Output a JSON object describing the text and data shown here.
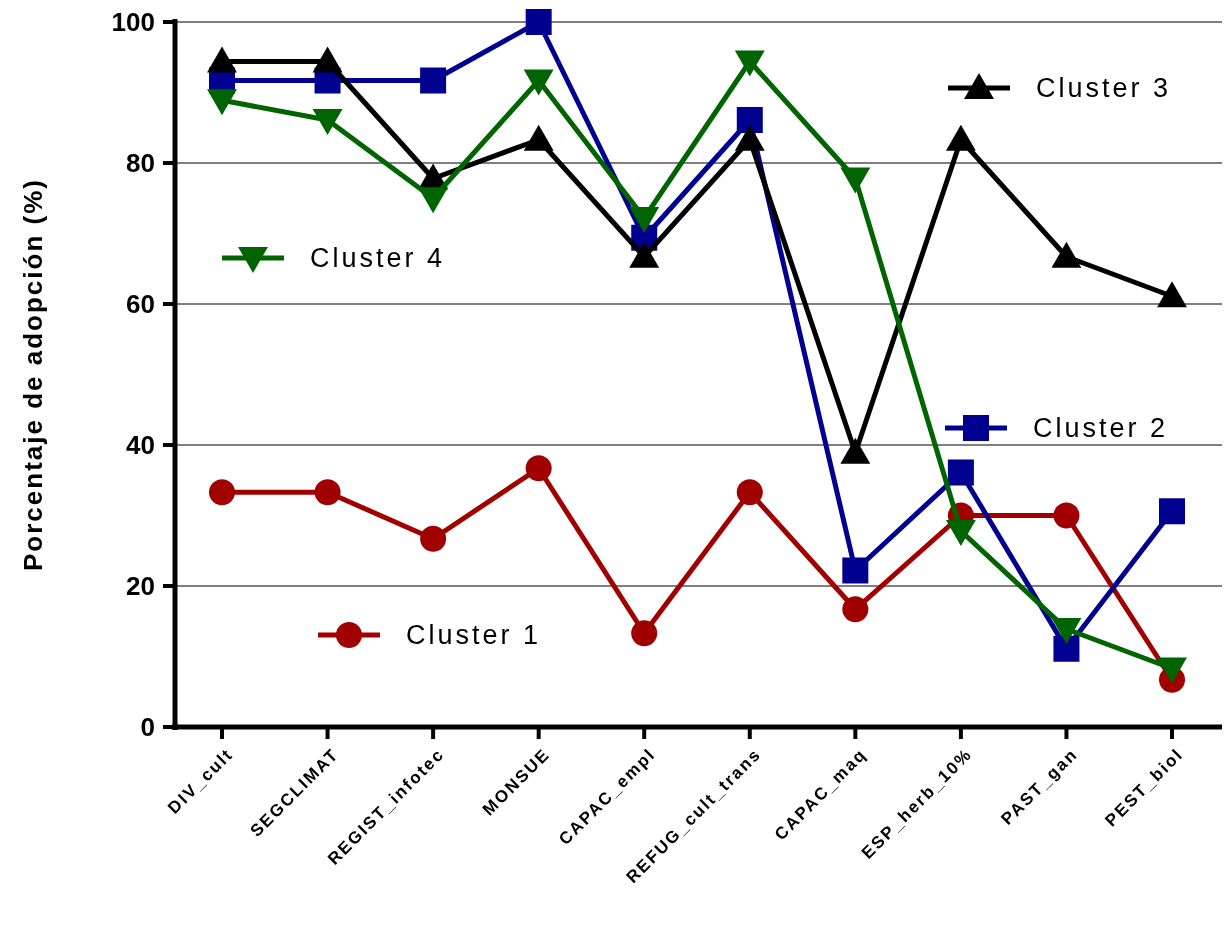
{
  "chart_data": {
    "type": "line",
    "ylabel": "Porcentaje de adopción (%)",
    "categories": [
      "DIV_cult",
      "SEGCLIMAT",
      "REGIST_infotec",
      "MONSUE",
      "CAPAC_empl",
      "REFUG_cult_trans",
      "CAPAC_maq",
      "ESP_herb_10%",
      "PAST_gan",
      "PEST_biol"
    ],
    "series": [
      {
        "name": "Cluster 1",
        "color": "#a00000",
        "marker": "circle",
        "values": [
          33.3,
          33.3,
          26.7,
          36.7,
          13.3,
          33.3,
          16.7,
          30,
          30,
          6.7
        ]
      },
      {
        "name": "Cluster 2",
        "color": "#000090",
        "marker": "square",
        "values": [
          91.7,
          91.7,
          91.7,
          100,
          69.4,
          86.1,
          22.2,
          36.1,
          11.1,
          30.6
        ]
      },
      {
        "name": "Cluster 3",
        "color": "#000000",
        "marker": "triangle",
        "values": [
          94.4,
          94.4,
          77.8,
          83.3,
          66.7,
          83.3,
          38.9,
          83.3,
          66.7,
          61.1
        ]
      },
      {
        "name": "Cluster 4",
        "color": "#006400",
        "marker": "triangle-down",
        "values": [
          88.9,
          86.1,
          75,
          91.7,
          72.2,
          94.4,
          77.8,
          27.8,
          13.9,
          8.3
        ]
      }
    ],
    "ylim": [
      0,
      100
    ],
    "yticks": [
      0,
      20,
      40,
      60,
      80,
      100
    ],
    "grid": "y",
    "legend": "right"
  }
}
